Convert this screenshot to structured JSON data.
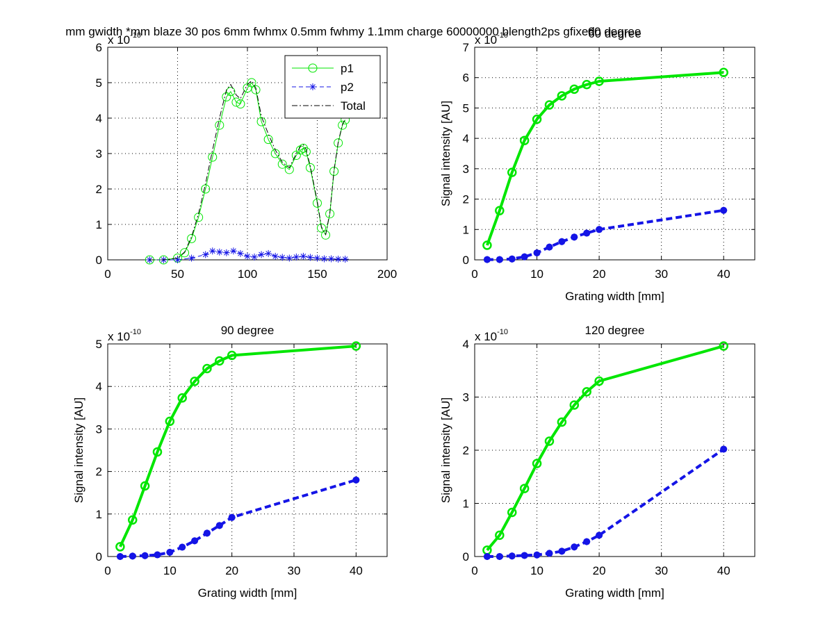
{
  "figure": {
    "suptitle": "mm gwidth *mm blaze 30 pos 6mm fwhmx 0.5mm fwhmy 1.1mm charge 60000000 blength2ps gfixed",
    "overlap_title": "60 degree"
  },
  "colors": {
    "p1": "#00e600",
    "p2": "#1414e6",
    "total": "#000000",
    "grid": "#000000"
  },
  "chart_data": [
    {
      "type": "line",
      "title": "",
      "xlabel": "",
      "ylabel": "",
      "xlim": [
        0,
        200
      ],
      "ylim": [
        0,
        6
      ],
      "xticks": [
        0,
        50,
        100,
        150,
        200
      ],
      "yticks": [
        0,
        1,
        2,
        3,
        4,
        5,
        6
      ],
      "exponent_base": "x 10",
      "exponent_power": "-10",
      "grid": true,
      "legend": {
        "position": "top-right",
        "entries": [
          "p1",
          "p2",
          "Total"
        ]
      },
      "series": [
        {
          "name": "p1",
          "style": "circle-line",
          "color": "#00e600",
          "x": [
            30,
            40,
            50,
            55,
            60,
            65,
            70,
            75,
            80,
            85,
            88,
            92,
            95,
            100,
            103,
            106,
            110,
            115,
            120,
            125,
            130,
            135,
            138,
            140,
            142,
            145,
            150,
            153,
            156,
            159,
            162,
            165,
            168,
            170
          ],
          "y": [
            0.0,
            0.0,
            0.05,
            0.2,
            0.6,
            1.2,
            2.0,
            2.9,
            3.8,
            4.6,
            4.75,
            4.45,
            4.4,
            4.85,
            5.0,
            4.8,
            3.9,
            3.4,
            3.0,
            2.7,
            2.55,
            2.95,
            3.1,
            3.15,
            3.05,
            2.6,
            1.6,
            0.9,
            0.7,
            1.3,
            2.5,
            3.3,
            3.8,
            3.95
          ]
        },
        {
          "name": "p2",
          "style": "star-dash",
          "color": "#1414e6",
          "x": [
            30,
            40,
            50,
            60,
            70,
            75,
            80,
            85,
            90,
            95,
            100,
            105,
            110,
            115,
            120,
            125,
            130,
            135,
            140,
            145,
            150,
            155,
            160,
            165,
            170
          ],
          "y": [
            0.0,
            0.0,
            0.0,
            0.05,
            0.15,
            0.25,
            0.22,
            0.2,
            0.25,
            0.18,
            0.1,
            0.08,
            0.15,
            0.18,
            0.1,
            0.07,
            0.05,
            0.08,
            0.1,
            0.07,
            0.05,
            0.03,
            0.03,
            0.02,
            0.02
          ]
        },
        {
          "name": "Total",
          "style": "dashdot",
          "color": "#000000",
          "x": [
            30,
            40,
            50,
            55,
            60,
            65,
            70,
            75,
            80,
            85,
            88,
            92,
            95,
            100,
            103,
            106,
            110,
            115,
            120,
            125,
            130,
            135,
            138,
            140,
            142,
            145,
            150,
            153,
            156,
            159,
            162,
            165,
            168,
            170
          ],
          "y": [
            0.0,
            0.0,
            0.05,
            0.22,
            0.65,
            1.3,
            2.15,
            3.1,
            4.0,
            4.8,
            4.95,
            4.65,
            4.55,
            4.95,
            5.05,
            4.85,
            4.05,
            3.55,
            3.1,
            2.75,
            2.6,
            3.0,
            3.2,
            3.25,
            3.12,
            2.65,
            1.65,
            0.93,
            0.72,
            1.33,
            2.53,
            3.32,
            3.82,
            3.97
          ]
        }
      ]
    },
    {
      "type": "line",
      "title": "60 degree",
      "xlabel": "Grating width [mm]",
      "ylabel": "Signal intensity [AU]",
      "xlim": [
        0,
        45
      ],
      "ylim": [
        0,
        7
      ],
      "xticks": [
        0,
        10,
        20,
        30,
        40
      ],
      "yticks": [
        0,
        1,
        2,
        3,
        4,
        5,
        6,
        7
      ],
      "exponent_base": "x 10",
      "exponent_power": "-10",
      "grid": true,
      "x": [
        2,
        4,
        6,
        8,
        10,
        12,
        14,
        16,
        18,
        20,
        40
      ],
      "series": [
        {
          "style": "circle-solid",
          "color": "#00e600",
          "values": [
            0.48,
            1.62,
            2.88,
            3.93,
            4.63,
            5.1,
            5.4,
            5.62,
            5.77,
            5.88,
            6.17
          ]
        },
        {
          "style": "star-dash",
          "color": "#1414e6",
          "values": [
            0.01,
            0.01,
            0.03,
            0.1,
            0.23,
            0.42,
            0.6,
            0.75,
            0.88,
            1.0,
            1.63
          ]
        }
      ]
    },
    {
      "type": "line",
      "title": "90 degree",
      "xlabel": "Grating width [mm]",
      "ylabel": "Signal intensity [AU]",
      "xlim": [
        0,
        45
      ],
      "ylim": [
        0,
        5
      ],
      "xticks": [
        0,
        10,
        20,
        30,
        40
      ],
      "yticks": [
        0,
        1,
        2,
        3,
        4,
        5
      ],
      "exponent_base": "x 10",
      "exponent_power": "-10",
      "grid": true,
      "x": [
        2,
        4,
        6,
        8,
        10,
        12,
        14,
        16,
        18,
        20,
        40
      ],
      "series": [
        {
          "style": "circle-solid",
          "color": "#00e600",
          "values": [
            0.23,
            0.86,
            1.66,
            2.46,
            3.18,
            3.73,
            4.12,
            4.42,
            4.6,
            4.73,
            4.95
          ]
        },
        {
          "style": "star-dash",
          "color": "#1414e6",
          "values": [
            0.0,
            0.01,
            0.02,
            0.04,
            0.1,
            0.22,
            0.37,
            0.55,
            0.73,
            0.92,
            1.8
          ]
        }
      ]
    },
    {
      "type": "line",
      "title": "120 degree",
      "xlabel": "Grating width [mm]",
      "ylabel": "Signal intensity [AU]",
      "xlim": [
        0,
        45
      ],
      "ylim": [
        0,
        4
      ],
      "xticks": [
        0,
        10,
        20,
        30,
        40
      ],
      "yticks": [
        0,
        1,
        2,
        3,
        4
      ],
      "exponent_base": "x 10",
      "exponent_power": "-10",
      "grid": true,
      "x": [
        2,
        4,
        6,
        8,
        10,
        12,
        14,
        16,
        18,
        20,
        40
      ],
      "series": [
        {
          "style": "circle-solid",
          "color": "#00e600",
          "values": [
            0.12,
            0.4,
            0.83,
            1.28,
            1.75,
            2.17,
            2.53,
            2.85,
            3.1,
            3.3,
            3.96
          ]
        },
        {
          "style": "star-dash",
          "color": "#1414e6",
          "values": [
            0.0,
            0.0,
            0.01,
            0.02,
            0.03,
            0.06,
            0.1,
            0.18,
            0.28,
            0.4,
            2.02
          ]
        }
      ]
    }
  ]
}
